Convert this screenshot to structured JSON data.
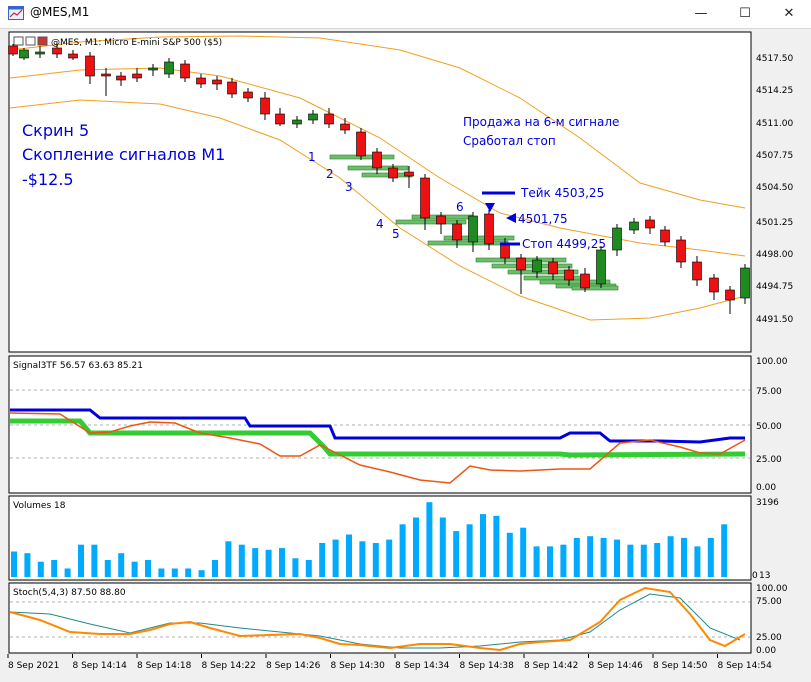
{
  "window": {
    "title": "@MES,M1",
    "controls": {
      "minimize": "—",
      "maximize": "☐",
      "close": "✕"
    }
  },
  "main_chart": {
    "header": "@MES, M1:  Micro E-mini S&P 500 ($5)",
    "price_ticks": [
      "4517.50",
      "4514.25",
      "4511.00",
      "4507.75",
      "4504.50",
      "4501.25",
      "4498.00",
      "4494.75",
      "4491.50"
    ],
    "annotation_left": {
      "line1": "Скрин 5",
      "line2": "Скопление сигналов M1",
      "line3": "-$12.5"
    },
    "annotation_right": {
      "line1": "Продажа на 6-м сигнале",
      "line2": "Сработал стоп"
    },
    "signal_numbers": [
      "1",
      "2",
      "3",
      "4",
      "5",
      "6"
    ],
    "take_label": "Тейк 4503,25",
    "entry_label": "4501,75",
    "stop_label": "Стоп 4499,25",
    "colors": {
      "bull": "#1f8a1f",
      "bear": "#ee1111",
      "band": "#f0a020",
      "marker": "#0000dd",
      "signal_box": "#6bbf6b"
    }
  },
  "signal_panel": {
    "header": "Signal3TF 56.57 63.63 85.21",
    "ticks": [
      "100.00",
      "75.00",
      "50.00",
      "25.00",
      "0.00"
    ],
    "colors": {
      "line_blue": "#0000dd",
      "line_green": "#33cc33",
      "line_orange": "#ee5511"
    }
  },
  "volumes_panel": {
    "header": "Volumes 18",
    "tick_top": "3196",
    "tick_bottom": "13",
    "tick_bottom_prefix": "0",
    "color": "#00aaff"
  },
  "stoch_panel": {
    "header": "Stoch(5,4,3) 87.50 88.80",
    "ticks": [
      "100.00",
      "75.00",
      "25.00",
      "0.00"
    ],
    "colors": {
      "main": "#ff8800",
      "signal": "#228888"
    }
  },
  "time_axis": [
    "8 Sep 2021",
    "8 Sep 14:14",
    "8 Sep 14:18",
    "8 Sep 14:22",
    "8 Sep 14:26",
    "8 Sep 14:30",
    "8 Sep 14:34",
    "8 Sep 14:38",
    "8 Sep 14:42",
    "8 Sep 14:46",
    "8 Sep 14:50",
    "8 Sep 14:54"
  ]
}
